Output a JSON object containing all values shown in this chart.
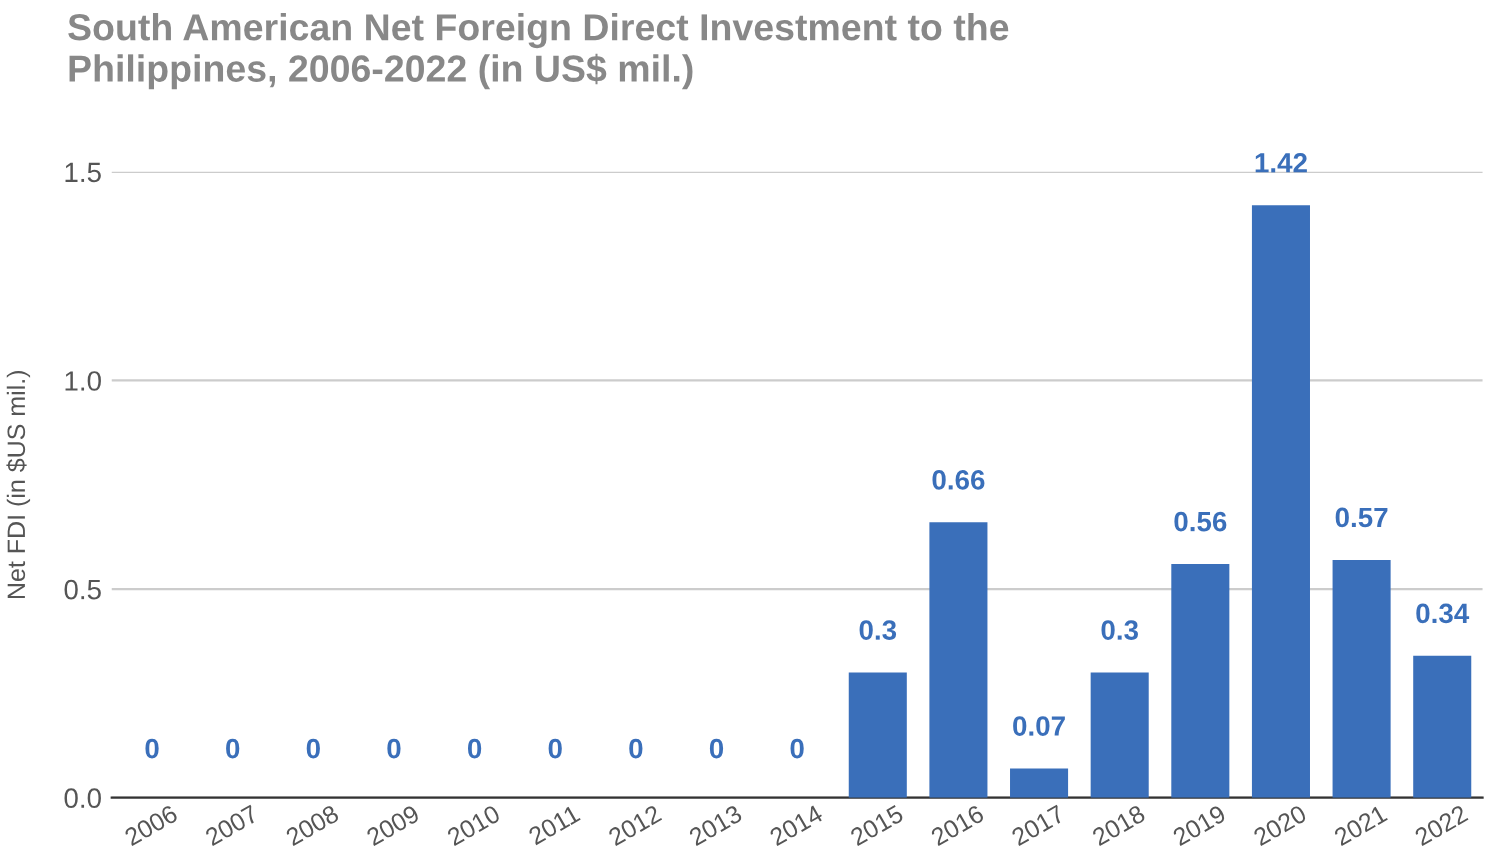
{
  "chart_data": {
    "type": "bar",
    "title": "South American Net Foreign Direct Investment to the\nPhilippines, 2006-2022 (in US$ mil.)",
    "ylabel": "Net FDI (in $US mil.)",
    "categories": [
      "2006",
      "2007",
      "2008",
      "2009",
      "2010",
      "2011",
      "2012",
      "2013",
      "2014",
      "2015",
      "2016",
      "2017",
      "2018",
      "2019",
      "2020",
      "2021",
      "2022"
    ],
    "values": [
      0,
      0,
      0,
      0,
      0,
      0,
      0,
      0,
      0,
      0.3,
      0.66,
      0.07,
      0.3,
      0.56,
      1.42,
      0.57,
      0.34
    ],
    "color": "#3a6fba",
    "ylim": [
      0,
      1.5
    ],
    "yticks": [
      {
        "value": 0,
        "label": "0.0"
      },
      {
        "value": 0.5,
        "label": "0.5"
      },
      {
        "value": 1.0,
        "label": "1.0"
      },
      {
        "value": 1.5,
        "label": "1.5"
      }
    ],
    "grid": "y",
    "data_labels": true
  }
}
